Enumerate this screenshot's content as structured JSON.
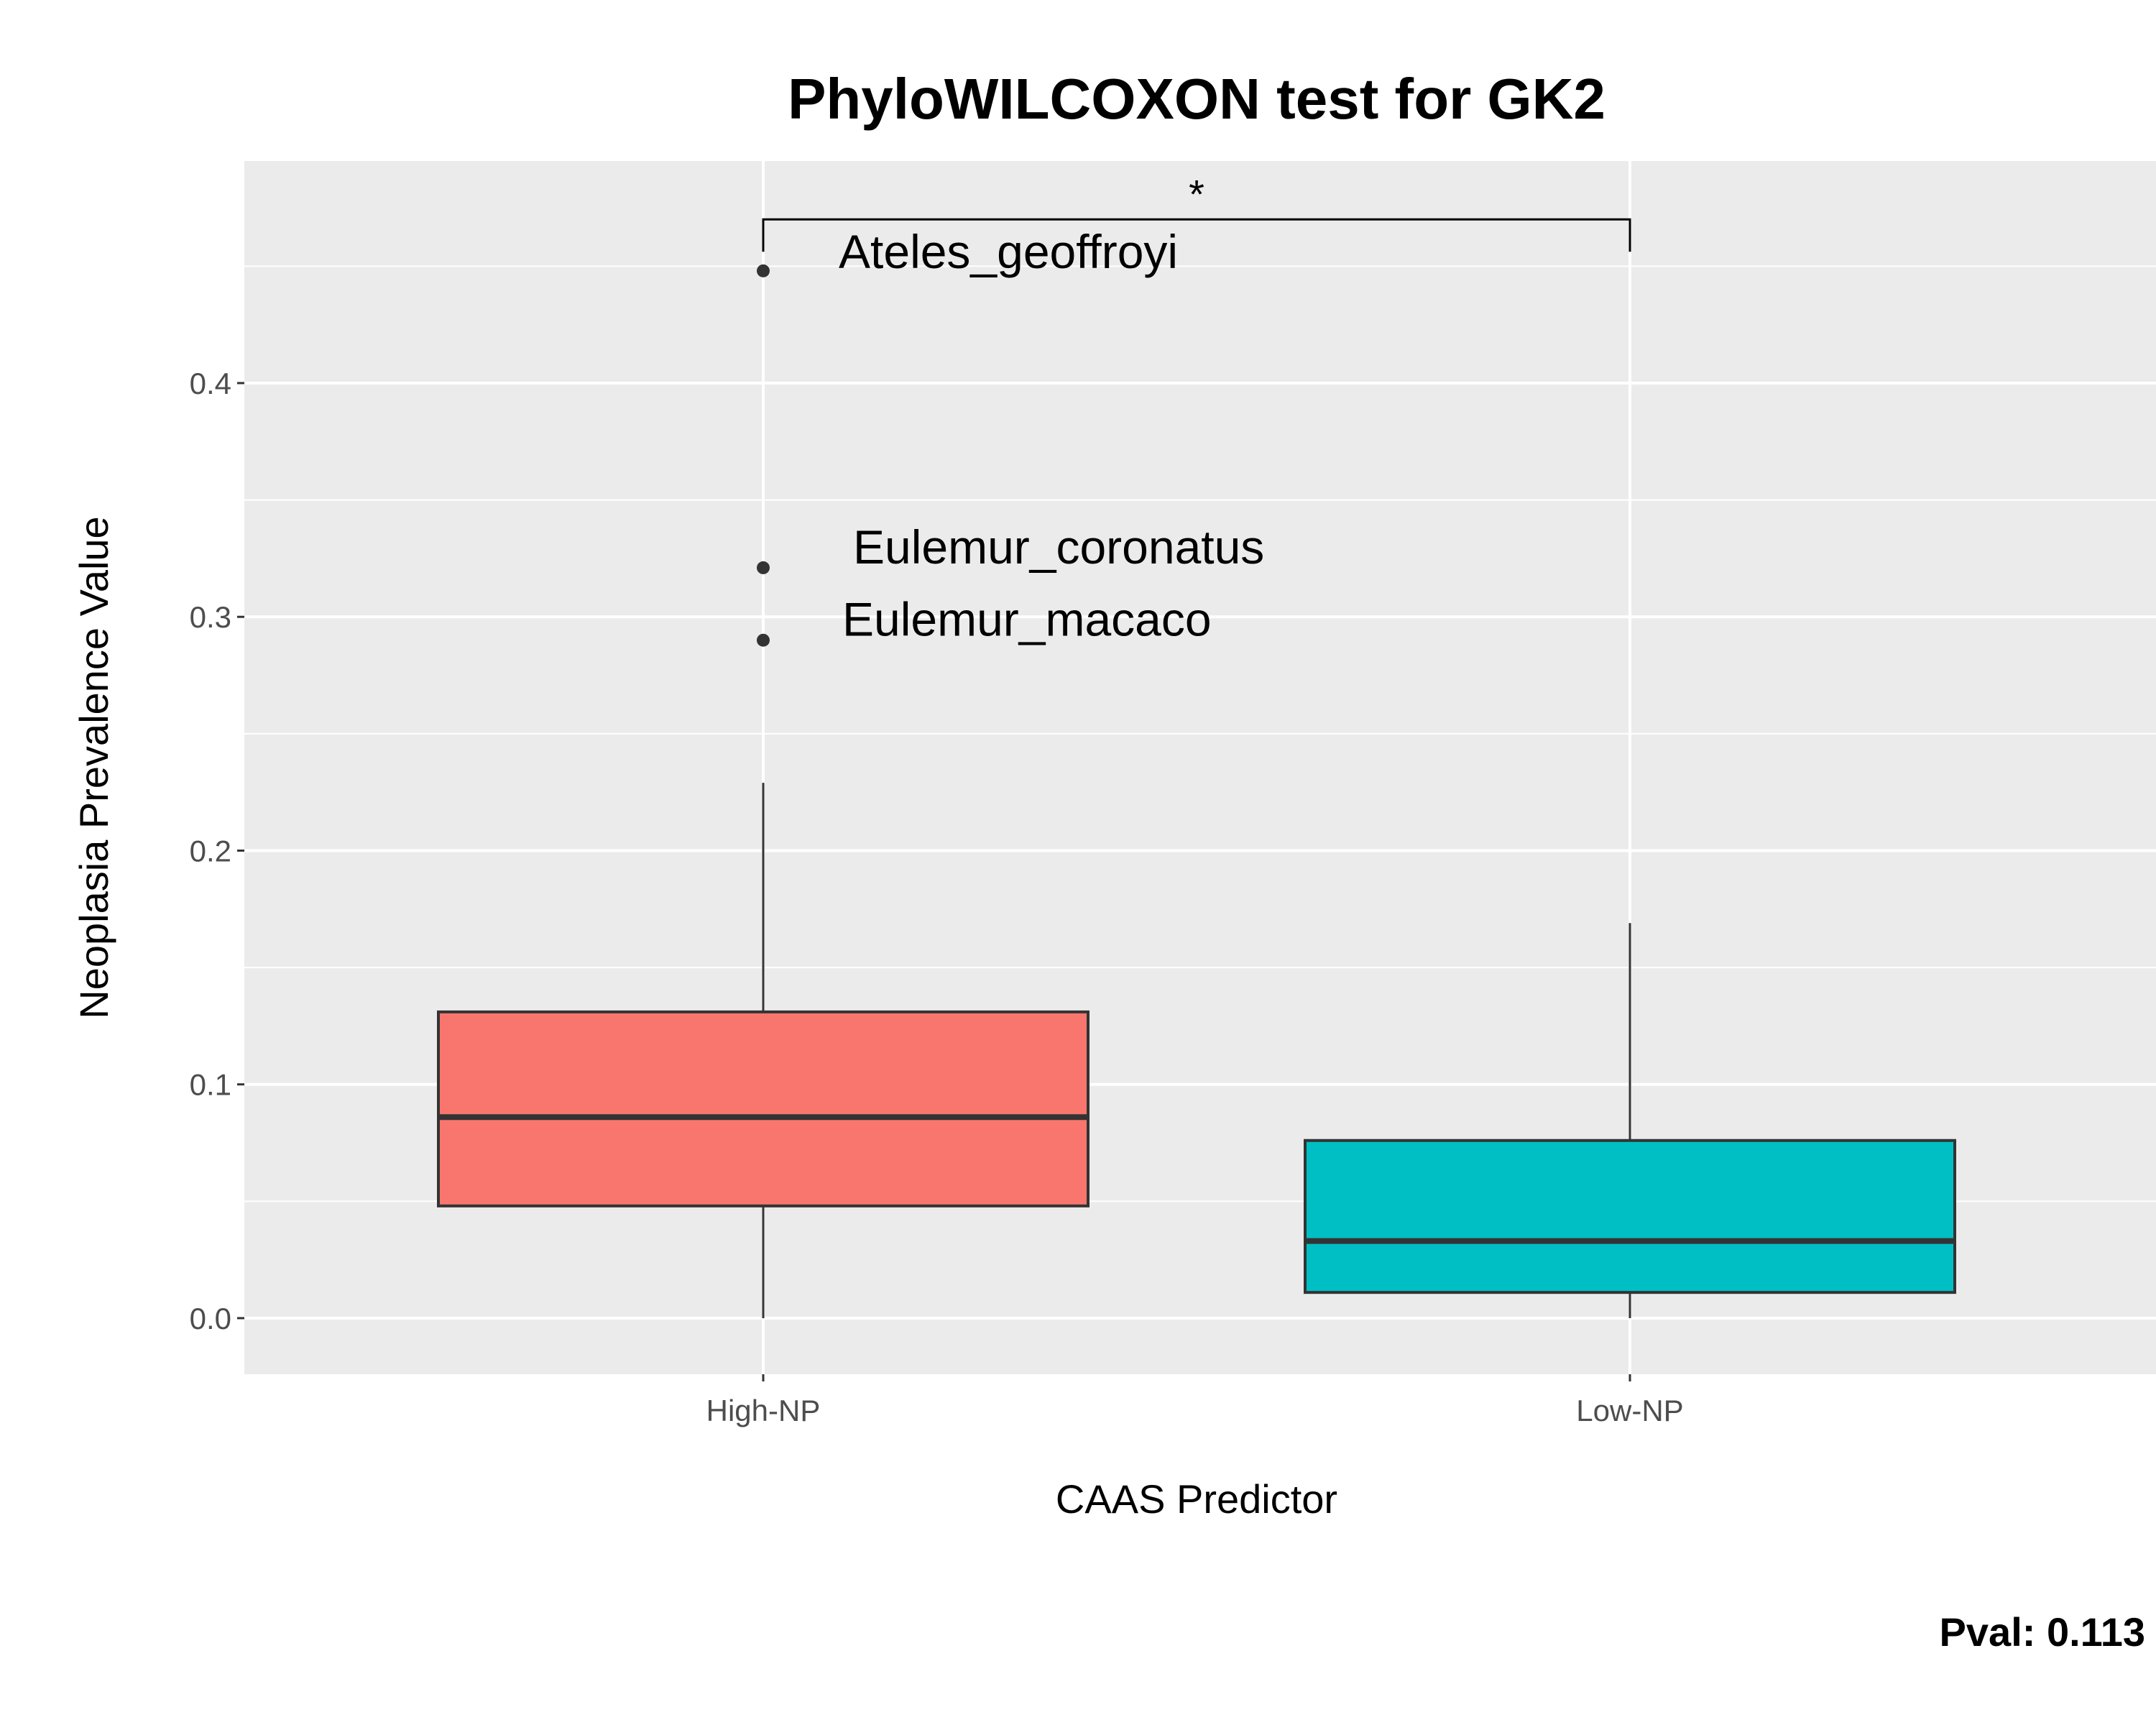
{
  "chart_data": {
    "type": "boxplot",
    "title": "PhyloWILCOXON test for GK2",
    "xlabel": "CAAS Predictor",
    "ylabel": "Neoplasia Prevalence Value",
    "ylim": [
      -0.024,
      0.495
    ],
    "yticks": [
      0.0,
      0.1,
      0.2,
      0.3,
      0.4
    ],
    "ytick_labels": [
      "0.0",
      "0.1",
      "0.2",
      "0.3",
      "0.4"
    ],
    "grid": true,
    "legend": "none",
    "categories": [
      "High-NP",
      "Low-NP"
    ],
    "boxes": [
      {
        "category": "High-NP",
        "lower_whisker": 0.0,
        "q1": 0.048,
        "median": 0.086,
        "q3": 0.131,
        "upper_whisker": 0.229,
        "fill": "#F8766D",
        "outliers": [
          {
            "value": 0.448,
            "label": "Ateles_geoffroyi"
          },
          {
            "value": 0.321,
            "label": "Eulemur_coronatus"
          },
          {
            "value": 0.29,
            "label": "Eulemur_macaco"
          }
        ]
      },
      {
        "category": "Low-NP",
        "lower_whisker": 0.0,
        "q1": 0.011,
        "median": 0.033,
        "q3": 0.076,
        "upper_whisker": 0.169,
        "fill": "#00BFC4",
        "outliers": []
      }
    ],
    "significance": {
      "from": "High-NP",
      "to": "Low-NP",
      "y": 0.47,
      "symbol": "*"
    },
    "footer": "Pval:  0.113"
  },
  "colors": {
    "panel_bg": "#EBEBEB",
    "grid": "#FFFFFF",
    "box_line": "#333333",
    "tick_text": "#4D4D4D"
  }
}
